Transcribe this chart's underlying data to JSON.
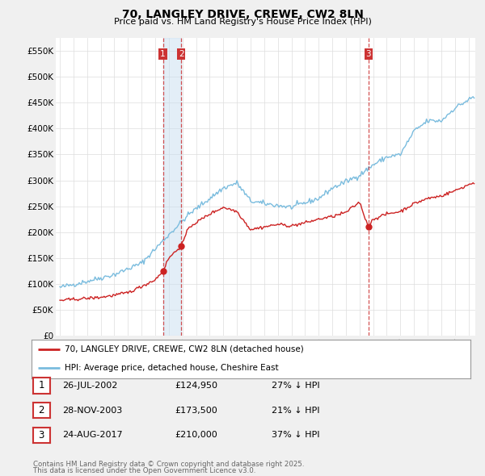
{
  "title": "70, LANGLEY DRIVE, CREWE, CW2 8LN",
  "subtitle": "Price paid vs. HM Land Registry's House Price Index (HPI)",
  "legend_line1": "70, LANGLEY DRIVE, CREWE, CW2 8LN (detached house)",
  "legend_line2": "HPI: Average price, detached house, Cheshire East",
  "footer_line1": "Contains HM Land Registry data © Crown copyright and database right 2025.",
  "footer_line2": "This data is licensed under the Open Government Licence v3.0.",
  "transactions": [
    {
      "num": 1,
      "date": "26-JUL-2002",
      "year": 2002.57,
      "price": 124950,
      "pct": "27% ↓ HPI"
    },
    {
      "num": 2,
      "date": "28-NOV-2003",
      "year": 2003.91,
      "price": 173500,
      "pct": "21% ↓ HPI"
    },
    {
      "num": 3,
      "date": "24-AUG-2017",
      "year": 2017.65,
      "price": 210000,
      "pct": "37% ↓ HPI"
    }
  ],
  "hpi_color": "#7abcde",
  "price_color": "#cc2222",
  "vline_color": "#cc3333",
  "marker_color": "#cc2222",
  "shade_color": "#c8dff0",
  "ylim": [
    0,
    575000
  ],
  "yticks": [
    0,
    50000,
    100000,
    150000,
    200000,
    250000,
    300000,
    350000,
    400000,
    450000,
    500000,
    550000
  ],
  "xlim_left": 1994.7,
  "xlim_right": 2025.5,
  "background_color": "#f0f0f0",
  "plot_background": "#ffffff",
  "grid_color": "#dddddd"
}
